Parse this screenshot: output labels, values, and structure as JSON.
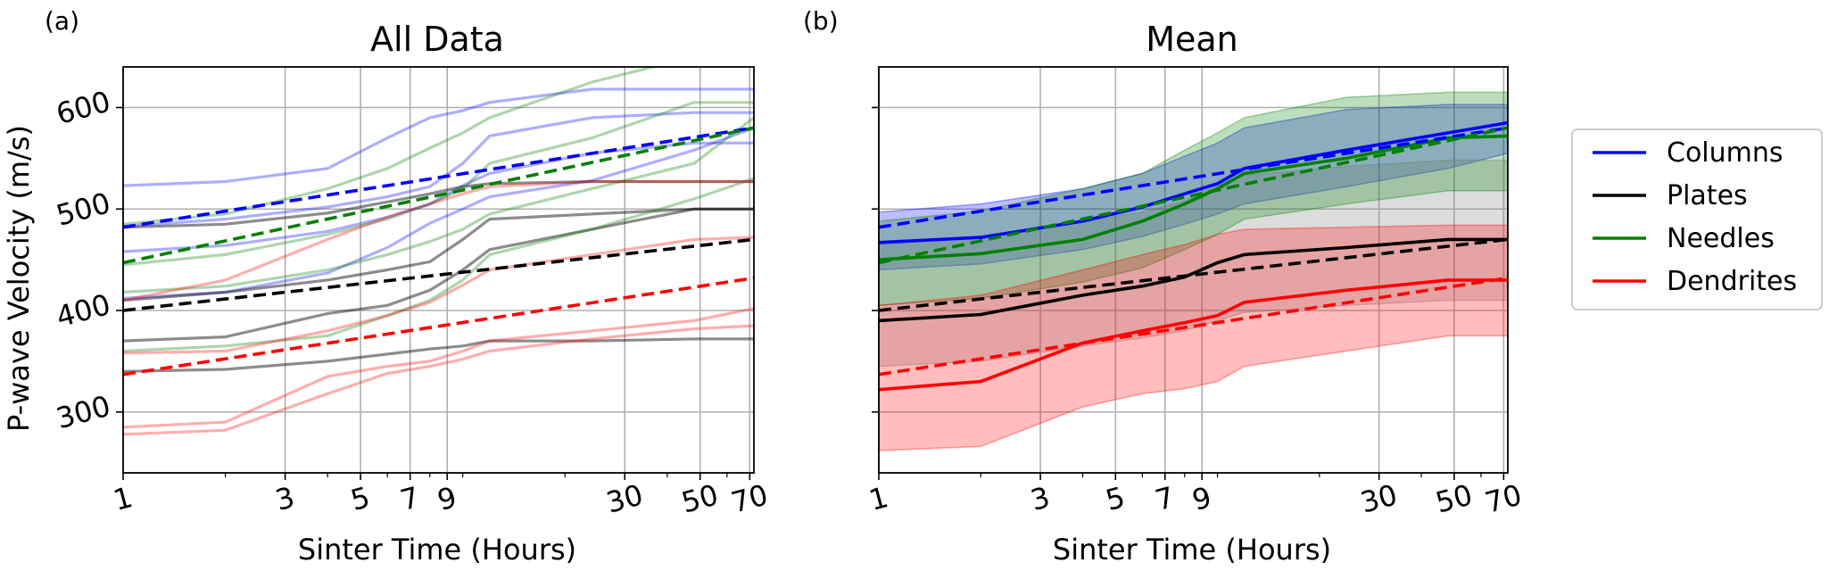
{
  "panels": [
    {
      "letter": "(a)",
      "title": "All Data",
      "xlabel": "Sinter Time (Hours)",
      "ylabel": "P-wave Velocity (m/s)",
      "show_y_labels": true
    },
    {
      "letter": "(b)",
      "title": "Mean",
      "xlabel": "Sinter Time (Hours)",
      "ylabel": "",
      "show_y_labels": false
    }
  ],
  "legend": {
    "entries": [
      {
        "name": "Columns",
        "color": "#0000ff"
      },
      {
        "name": "Plates",
        "color": "#000000"
      },
      {
        "name": "Needles",
        "color": "#008000"
      },
      {
        "name": "Dendrites",
        "color": "#ff0000"
      }
    ]
  },
  "chart_data": [
    {
      "type": "line",
      "title": "All Data",
      "xlabel": "Sinter Time (Hours)",
      "ylabel": "P-wave Velocity (m/s)",
      "x_scale": "log",
      "xlim": [
        1,
        72
      ],
      "ylim": [
        240,
        640
      ],
      "x_ticks": [
        1,
        3,
        5,
        7,
        9,
        30,
        50,
        70
      ],
      "x_tick_labels": [
        "1",
        "3",
        "5",
        "7",
        "9",
        "30",
        "50",
        "70"
      ],
      "y_ticks": [
        300,
        400,
        500,
        600
      ],
      "y_tick_labels": [
        "300",
        "400",
        "500",
        "600"
      ],
      "grid": true,
      "x": [
        1,
        2,
        4,
        6,
        8,
        10,
        12,
        24,
        48,
        72
      ],
      "series": [
        {
          "class": "Columns",
          "color": "#0000ff",
          "values": [
            523,
            527,
            540,
            570,
            590,
            597,
            605,
            618,
            618,
            618
          ]
        },
        {
          "class": "Columns",
          "color": "#0000ff",
          "values": [
            483,
            490,
            502,
            512,
            522,
            545,
            572,
            590,
            595,
            595
          ]
        },
        {
          "class": "Columns",
          "color": "#0000ff",
          "values": [
            458,
            464,
            478,
            492,
            505,
            523,
            535,
            555,
            565,
            565
          ]
        },
        {
          "class": "Columns",
          "color": "#0000ff",
          "values": [
            412,
            418,
            437,
            462,
            486,
            500,
            512,
            528,
            558,
            580
          ]
        },
        {
          "class": "Plates",
          "color": "#000000",
          "values": [
            482,
            485,
            496,
            507,
            515,
            522,
            525,
            527,
            527,
            527
          ]
        },
        {
          "class": "Plates",
          "color": "#000000",
          "values": [
            410,
            418,
            430,
            440,
            448,
            470,
            490,
            495,
            500,
            500
          ]
        },
        {
          "class": "Plates",
          "color": "#000000",
          "values": [
            370,
            374,
            397,
            405,
            420,
            440,
            460,
            480,
            500,
            500
          ]
        },
        {
          "class": "Plates",
          "color": "#000000",
          "values": [
            340,
            342,
            350,
            357,
            362,
            365,
            370,
            370,
            372,
            372
          ]
        },
        {
          "class": "Needles",
          "color": "#008000",
          "values": [
            485,
            495,
            520,
            540,
            560,
            575,
            590,
            625,
            650,
            650
          ]
        },
        {
          "class": "Needles",
          "color": "#008000",
          "values": [
            445,
            455,
            475,
            490,
            505,
            520,
            545,
            570,
            605,
            605
          ]
        },
        {
          "class": "Needles",
          "color": "#008000",
          "values": [
            418,
            424,
            440,
            455,
            468,
            480,
            495,
            520,
            545,
            590
          ]
        },
        {
          "class": "Needles",
          "color": "#008000",
          "values": [
            360,
            365,
            375,
            395,
            410,
            430,
            455,
            480,
            510,
            530
          ]
        },
        {
          "class": "Dendrites",
          "color": "#ff0000",
          "values": [
            410,
            430,
            470,
            492,
            505,
            515,
            522,
            527,
            527,
            527
          ]
        },
        {
          "class": "Dendrites",
          "color": "#ff0000",
          "values": [
            358,
            360,
            380,
            395,
            408,
            425,
            440,
            455,
            470,
            472
          ]
        },
        {
          "class": "Dendrites",
          "color": "#ff0000",
          "values": [
            285,
            290,
            335,
            345,
            350,
            360,
            370,
            380,
            390,
            402
          ]
        },
        {
          "class": "Dendrites",
          "color": "#ff0000",
          "values": [
            278,
            282,
            318,
            338,
            345,
            352,
            360,
            372,
            382,
            385
          ]
        }
      ],
      "trend_lines": [
        {
          "class": "Columns",
          "color": "#0000ff",
          "style": "dashed",
          "x": [
            1,
            72
          ],
          "values": [
            482,
            580
          ]
        },
        {
          "class": "Plates",
          "color": "#000000",
          "style": "dashed",
          "x": [
            1,
            72
          ],
          "values": [
            400,
            470
          ]
        },
        {
          "class": "Needles",
          "color": "#008000",
          "style": "dashed",
          "x": [
            1,
            72
          ],
          "values": [
            447,
            580
          ]
        },
        {
          "class": "Dendrites",
          "color": "#ff0000",
          "style": "dashed",
          "x": [
            1,
            72
          ],
          "values": [
            337,
            432
          ]
        }
      ]
    },
    {
      "type": "area",
      "title": "Mean",
      "xlabel": "Sinter Time (Hours)",
      "ylabel": "",
      "x_scale": "log",
      "xlim": [
        1,
        72
      ],
      "ylim": [
        240,
        640
      ],
      "x_ticks": [
        1,
        3,
        5,
        7,
        9,
        30,
        50,
        70
      ],
      "x_tick_labels": [
        "1",
        "3",
        "5",
        "7",
        "9",
        "30",
        "50",
        "70"
      ],
      "y_ticks": [
        300,
        400,
        500,
        600
      ],
      "grid": true,
      "x": [
        1,
        2,
        4,
        6,
        8,
        10,
        12,
        24,
        48,
        72
      ],
      "series": [
        {
          "name": "Columns",
          "color": "#0000ff",
          "mean": [
            467,
            472,
            488,
            502,
            515,
            525,
            540,
            558,
            575,
            585
          ],
          "upper": [
            497,
            505,
            520,
            535,
            552,
            565,
            580,
            598,
            603,
            603
          ],
          "lower": [
            440,
            446,
            460,
            473,
            485,
            495,
            505,
            522,
            540,
            555
          ]
        },
        {
          "name": "Plates",
          "color": "#000000",
          "mean": [
            390,
            396,
            415,
            424,
            433,
            447,
            455,
            462,
            470,
            470
          ],
          "upper": [
            465,
            472,
            487,
            497,
            508,
            523,
            533,
            542,
            548,
            548
          ],
          "lower": [
            345,
            350,
            365,
            373,
            380,
            390,
            398,
            405,
            410,
            410
          ]
        },
        {
          "name": "Needles",
          "color": "#008000",
          "mean": [
            450,
            456,
            470,
            488,
            505,
            520,
            535,
            550,
            570,
            572
          ],
          "upper": [
            488,
            498,
            520,
            535,
            558,
            575,
            590,
            610,
            615,
            615
          ],
          "lower": [
            405,
            412,
            428,
            442,
            460,
            475,
            490,
            505,
            518,
            518
          ]
        },
        {
          "name": "Dendrites",
          "color": "#ff0000",
          "mean": [
            322,
            330,
            368,
            380,
            388,
            395,
            408,
            420,
            430,
            430
          ],
          "upper": [
            405,
            415,
            440,
            455,
            465,
            475,
            480,
            482,
            484,
            484
          ],
          "lower": [
            262,
            266,
            305,
            318,
            323,
            330,
            345,
            360,
            375,
            375
          ]
        }
      ],
      "trend_lines": [
        {
          "class": "Columns",
          "color": "#0000ff",
          "style": "dashed",
          "x": [
            1,
            72
          ],
          "values": [
            482,
            580
          ]
        },
        {
          "class": "Plates",
          "color": "#000000",
          "style": "dashed",
          "x": [
            1,
            72
          ],
          "values": [
            400,
            470
          ]
        },
        {
          "class": "Needles",
          "color": "#008000",
          "style": "dashed",
          "x": [
            1,
            72
          ],
          "values": [
            447,
            580
          ]
        },
        {
          "class": "Dendrites",
          "color": "#ff0000",
          "style": "dashed",
          "x": [
            1,
            72
          ],
          "values": [
            337,
            432
          ]
        }
      ]
    }
  ]
}
